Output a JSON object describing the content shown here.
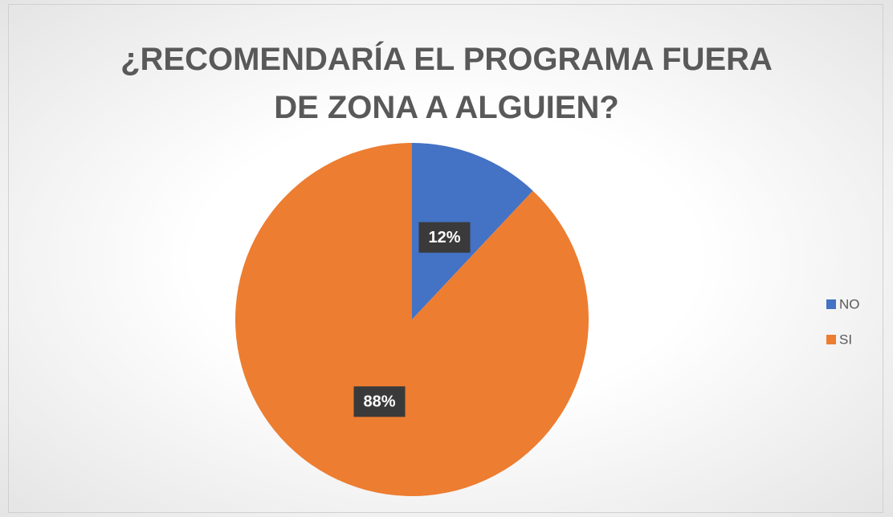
{
  "chart_data": {
    "type": "pie",
    "title": "¿RECOMENDARÍA EL PROGRAMA FUERA DE ZONA A ALGUIEN?",
    "categories": [
      "NO",
      "SI"
    ],
    "values": [
      12,
      88
    ],
    "value_labels": [
      "12%",
      "88%"
    ],
    "colors": [
      "#4472c4",
      "#ed7d31"
    ],
    "legend": "right"
  }
}
